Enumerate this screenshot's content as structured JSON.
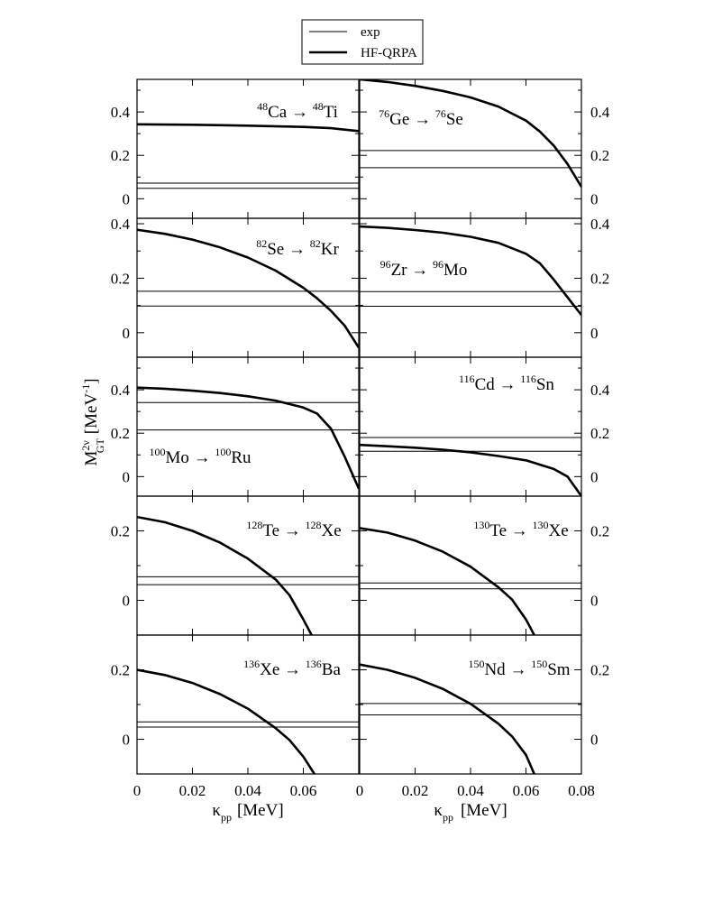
{
  "legend": {
    "items": [
      {
        "label": "exp",
        "style": "thin"
      },
      {
        "label": "HF-QRPA",
        "style": "thick"
      }
    ]
  },
  "axes": {
    "ylabel_main": "M",
    "ylabel_sup": "2ν",
    "ylabel_sub": "GT",
    "ylabel_unit": "[MeV",
    "ylabel_unit_sup": "-1",
    "ylabel_unit_close": "]",
    "xlabel_symbol": "κ",
    "xlabel_sub": "pp",
    "xlabel_unit": "[MeV]",
    "xlim": [
      0,
      0.08
    ]
  },
  "chart_data": [
    {
      "type": "line",
      "id": "ca48",
      "parent": "48",
      "parent_sym": "Ca",
      "daughter": "48",
      "daughter_sym": "Ti",
      "ylim": [
        -0.09,
        0.55
      ],
      "yticks": [
        0,
        0.2,
        0.4
      ],
      "ytick_labels": [
        "0",
        "0.2",
        "0.4"
      ],
      "exp": [
        0.048,
        0.072
      ],
      "series": [
        {
          "name": "HF-QRPA",
          "x": [
            0,
            0.02,
            0.04,
            0.06,
            0.07,
            0.08
          ],
          "y": [
            0.343,
            0.341,
            0.337,
            0.331,
            0.325,
            0.312
          ]
        }
      ]
    },
    {
      "type": "line",
      "id": "ge76",
      "parent": "76",
      "parent_sym": "Ge",
      "daughter": "76",
      "daughter_sym": "Se",
      "ylim": [
        -0.09,
        0.55
      ],
      "yticks": [
        0,
        0.2,
        0.4
      ],
      "ytick_labels": [
        "0",
        "0.2",
        "0.4"
      ],
      "exp": [
        0.143,
        0.222
      ],
      "series": [
        {
          "name": "HF-QRPA",
          "x": [
            0,
            0.01,
            0.02,
            0.03,
            0.04,
            0.05,
            0.06,
            0.065,
            0.07,
            0.075,
            0.08
          ],
          "y": [
            0.55,
            0.538,
            0.52,
            0.497,
            0.467,
            0.425,
            0.36,
            0.31,
            0.245,
            0.16,
            0.055
          ]
        }
      ]
    },
    {
      "type": "line",
      "id": "se82",
      "parent": "82",
      "parent_sym": "Se",
      "daughter": "82",
      "daughter_sym": "Kr",
      "ylim": [
        -0.09,
        0.42
      ],
      "yticks": [
        0,
        0.2,
        0.4
      ],
      "ytick_labels": [
        "0",
        "0.2",
        "0.4"
      ],
      "exp": [
        0.098,
        0.152
      ],
      "series": [
        {
          "name": "HF-QRPA",
          "x": [
            0,
            0.01,
            0.02,
            0.03,
            0.04,
            0.05,
            0.06,
            0.065,
            0.07,
            0.075,
            0.08
          ],
          "y": [
            0.378,
            0.363,
            0.342,
            0.313,
            0.276,
            0.228,
            0.165,
            0.126,
            0.08,
            0.025,
            -0.055
          ]
        }
      ]
    },
    {
      "type": "line",
      "id": "zr96",
      "parent": "96",
      "parent_sym": "Zr",
      "daughter": "96",
      "daughter_sym": "Mo",
      "ylim": [
        -0.09,
        0.42
      ],
      "yticks": [
        0,
        0.2,
        0.4
      ],
      "ytick_labels": [
        "0",
        "0.2",
        "0.4"
      ],
      "exp": [
        0.097,
        0.151
      ],
      "series": [
        {
          "name": "HF-QRPA",
          "x": [
            0,
            0.01,
            0.02,
            0.03,
            0.04,
            0.05,
            0.06,
            0.065,
            0.07,
            0.075,
            0.08
          ],
          "y": [
            0.39,
            0.385,
            0.377,
            0.367,
            0.352,
            0.33,
            0.29,
            0.255,
            0.195,
            0.13,
            0.065
          ]
        }
      ]
    },
    {
      "type": "line",
      "id": "mo100",
      "parent": "100",
      "parent_sym": "Mo",
      "daughter": "100",
      "daughter_sym": "Ru",
      "ylim": [
        -0.09,
        0.55
      ],
      "yticks": [
        0,
        0.2,
        0.4
      ],
      "ytick_labels": [
        "0",
        "0.2",
        "0.4"
      ],
      "exp": [
        0.215,
        0.341
      ],
      "series": [
        {
          "name": "HF-QRPA",
          "x": [
            0,
            0.01,
            0.02,
            0.03,
            0.04,
            0.05,
            0.06,
            0.065,
            0.07,
            0.075,
            0.08
          ],
          "y": [
            0.41,
            0.405,
            0.396,
            0.385,
            0.37,
            0.35,
            0.318,
            0.29,
            0.22,
            0.09,
            -0.055
          ]
        }
      ]
    },
    {
      "type": "line",
      "id": "cd116",
      "parent": "116",
      "parent_sym": "Cd",
      "daughter": "116",
      "daughter_sym": "Sn",
      "ylim": [
        -0.09,
        0.55
      ],
      "yticks": [
        0,
        0.2,
        0.4
      ],
      "ytick_labels": [
        "0",
        "0.2",
        "0.4"
      ],
      "exp": [
        0.117,
        0.18
      ],
      "series": [
        {
          "name": "HF-QRPA",
          "x": [
            0,
            0.01,
            0.02,
            0.03,
            0.04,
            0.05,
            0.06,
            0.07,
            0.075,
            0.08
          ],
          "y": [
            0.146,
            0.14,
            0.133,
            0.124,
            0.112,
            0.095,
            0.075,
            0.035,
            0.0,
            -0.09
          ]
        }
      ]
    },
    {
      "type": "line",
      "id": "te128",
      "parent": "128",
      "parent_sym": "Te",
      "daughter": "128",
      "daughter_sym": "Xe",
      "ylim": [
        -0.1,
        0.3
      ],
      "yticks": [
        0,
        0.2
      ],
      "ytick_labels": [
        "0",
        "0.2"
      ],
      "exp": [
        0.045,
        0.068
      ],
      "series": [
        {
          "name": "HF-QRPA",
          "x": [
            0,
            0.01,
            0.02,
            0.03,
            0.04,
            0.05,
            0.055,
            0.06,
            0.063
          ],
          "y": [
            0.24,
            0.225,
            0.2,
            0.166,
            0.12,
            0.06,
            0.015,
            -0.055,
            -0.1
          ]
        }
      ]
    },
    {
      "type": "line",
      "id": "te130",
      "parent": "130",
      "parent_sym": "Te",
      "daughter": "130",
      "daughter_sym": "Xe",
      "ylim": [
        -0.1,
        0.3
      ],
      "yticks": [
        0,
        0.2
      ],
      "ytick_labels": [
        "0",
        "0.2"
      ],
      "exp": [
        0.033,
        0.05
      ],
      "series": [
        {
          "name": "HF-QRPA",
          "x": [
            0,
            0.01,
            0.02,
            0.03,
            0.04,
            0.05,
            0.055,
            0.06,
            0.063
          ],
          "y": [
            0.208,
            0.195,
            0.172,
            0.14,
            0.097,
            0.038,
            0.002,
            -0.055,
            -0.1
          ]
        }
      ]
    },
    {
      "type": "line",
      "id": "xe136",
      "parent": "136",
      "parent_sym": "Xe",
      "daughter": "136",
      "daughter_sym": "Ba",
      "ylim": [
        -0.1,
        0.3
      ],
      "yticks": [
        0,
        0.2
      ],
      "ytick_labels": [
        "0",
        "0.2"
      ],
      "exp": [
        0.035,
        0.05
      ],
      "series": [
        {
          "name": "HF-QRPA",
          "x": [
            0,
            0.01,
            0.02,
            0.03,
            0.04,
            0.05,
            0.055,
            0.06,
            0.064
          ],
          "y": [
            0.2,
            0.185,
            0.162,
            0.13,
            0.088,
            0.032,
            -0.002,
            -0.05,
            -0.1
          ]
        }
      ]
    },
    {
      "type": "line",
      "id": "nd150",
      "parent": "150",
      "parent_sym": "Nd",
      "daughter": "150",
      "daughter_sym": "Sm",
      "ylim": [
        -0.1,
        0.3
      ],
      "yticks": [
        0,
        0.2
      ],
      "ytick_labels": [
        "0",
        "0.2"
      ],
      "exp": [
        0.07,
        0.103
      ],
      "series": [
        {
          "name": "HF-QRPA",
          "x": [
            0,
            0.01,
            0.02,
            0.03,
            0.04,
            0.05,
            0.055,
            0.06,
            0.063
          ],
          "y": [
            0.215,
            0.2,
            0.177,
            0.145,
            0.102,
            0.045,
            0.008,
            -0.045,
            -0.1
          ]
        }
      ]
    }
  ],
  "xticks": [
    0,
    0.02,
    0.04,
    0.06,
    0.08
  ],
  "xtick_labels_left": [
    "0",
    "0.02",
    "0.04",
    "0.06"
  ],
  "xtick_labels_right": [
    "0",
    "0.02",
    "0.04",
    "0.06",
    "0.08"
  ]
}
